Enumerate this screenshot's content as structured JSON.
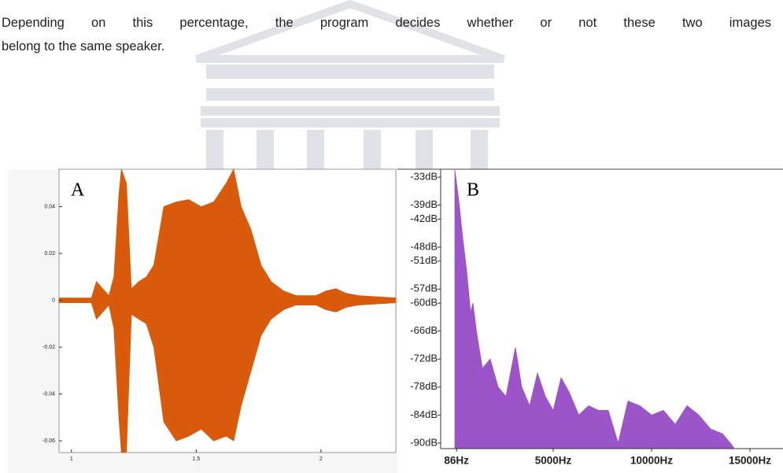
{
  "text": {
    "lines": [
      "Depending on this percentage, the program decides whether or not these two images",
      "belong to the same speaker."
    ]
  },
  "chart_data": [
    {
      "type": "area",
      "panel_label": "A",
      "x": [
        0.95,
        1.0,
        1.08,
        1.1,
        1.15,
        1.17,
        1.19,
        1.2,
        1.22,
        1.24,
        1.27,
        1.3,
        1.33,
        1.37,
        1.42,
        1.47,
        1.52,
        1.57,
        1.62,
        1.65,
        1.68,
        1.72,
        1.76,
        1.8,
        1.85,
        1.9,
        1.98,
        2.02,
        2.06,
        2.1,
        2.15,
        2.3
      ],
      "series": [
        {
          "color": "#d95a0a",
          "values": [
            0.001,
            0.001,
            0.001,
            0.008,
            0.002,
            0.01,
            0.045,
            0.056,
            0.05,
            0.005,
            0.008,
            0.01,
            0.015,
            0.04,
            0.042,
            0.043,
            0.04,
            0.042,
            0.05,
            0.056,
            0.04,
            0.03,
            0.015,
            0.008,
            0.004,
            0.002,
            0.002,
            0.004,
            0.005,
            0.003,
            0.002,
            0.001
          ]
        },
        {
          "color": "#d95a0a",
          "values": [
            -0.001,
            -0.001,
            -0.001,
            -0.008,
            -0.002,
            -0.012,
            -0.05,
            -0.065,
            -0.065,
            -0.006,
            -0.008,
            -0.01,
            -0.02,
            -0.052,
            -0.06,
            -0.058,
            -0.055,
            -0.06,
            -0.058,
            -0.06,
            -0.045,
            -0.03,
            -0.015,
            -0.008,
            -0.004,
            -0.002,
            -0.002,
            -0.004,
            -0.005,
            -0.003,
            -0.002,
            -0.001
          ]
        }
      ],
      "xlim": [
        0.95,
        2.3
      ],
      "xticks": [
        1,
        1.5,
        2
      ],
      "ylim": [
        -0.065,
        0.056
      ],
      "yticks": [
        0.04,
        0.02,
        0,
        -0.02,
        -0.04,
        -0.06
      ]
    },
    {
      "type": "area",
      "panel_label": "B",
      "x": [
        0,
        200,
        400,
        600,
        800,
        920,
        1100,
        1400,
        1800,
        2200,
        2600,
        3080,
        3400,
        3800,
        4200,
        4600,
        5000,
        5400,
        5800,
        6300,
        6800,
        7300,
        7800,
        8300,
        8800,
        9400,
        10000,
        10600,
        11200,
        11800,
        12400,
        13000,
        13600,
        14000,
        14200
      ],
      "series": [
        {
          "color": "#9b55c9",
          "values": [
            -31.5,
            -38,
            -46,
            -53,
            -62,
            -60,
            -66,
            -74,
            -72,
            -78,
            -80,
            -69.5,
            -78,
            -82,
            -75,
            -80,
            -83,
            -76,
            -79,
            -84,
            -82,
            -83,
            -83,
            -90,
            -81,
            -82,
            -84,
            -83,
            -86,
            -82,
            -84,
            -87,
            -88,
            -90,
            -91.2
          ]
        }
      ],
      "xlim": [
        -720,
        16680
      ],
      "xticks": [
        {
          "value": 86,
          "label": "86Hz"
        },
        {
          "value": 5000,
          "label": "5000Hz"
        },
        {
          "value": 10000,
          "label": "10000Hz"
        },
        {
          "value": 15000,
          "label": "15000Hz"
        }
      ],
      "ylim": [
        -91.2,
        -31.3
      ],
      "yticks": [
        {
          "value": -33,
          "label": "-33dB"
        },
        {
          "value": -39,
          "label": "-39dB"
        },
        {
          "value": -42,
          "label": "-42dB"
        },
        {
          "value": -48,
          "label": "-48dB"
        },
        {
          "value": -51,
          "label": "-51dB"
        },
        {
          "value": -57,
          "label": "-57dB"
        },
        {
          "value": -60,
          "label": "-60dB"
        },
        {
          "value": -66,
          "label": "-66dB"
        },
        {
          "value": -72,
          "label": "-72dB"
        },
        {
          "value": -78,
          "label": "-78dB"
        },
        {
          "value": -84,
          "label": "-84dB"
        },
        {
          "value": -90,
          "label": "-90dB"
        }
      ]
    }
  ]
}
